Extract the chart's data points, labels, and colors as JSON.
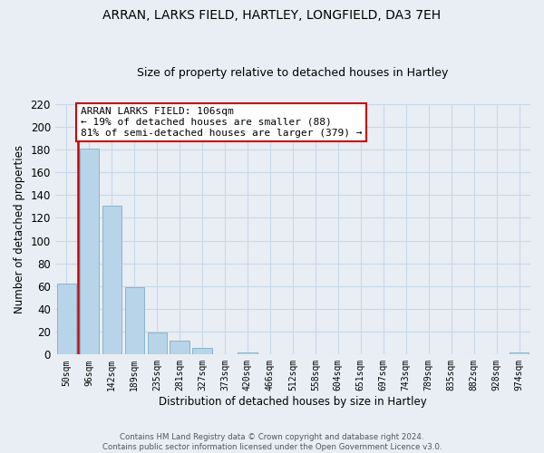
{
  "title": "ARRAN, LARKS FIELD, HARTLEY, LONGFIELD, DA3 7EH",
  "subtitle": "Size of property relative to detached houses in Hartley",
  "xlabel": "Distribution of detached houses by size in Hartley",
  "ylabel": "Number of detached properties",
  "bar_labels": [
    "50sqm",
    "96sqm",
    "142sqm",
    "189sqm",
    "235sqm",
    "281sqm",
    "327sqm",
    "373sqm",
    "420sqm",
    "466sqm",
    "512sqm",
    "558sqm",
    "604sqm",
    "651sqm",
    "697sqm",
    "743sqm",
    "789sqm",
    "835sqm",
    "882sqm",
    "928sqm",
    "974sqm"
  ],
  "bar_values": [
    62,
    181,
    131,
    59,
    19,
    12,
    6,
    0,
    2,
    0,
    0,
    0,
    0,
    0,
    0,
    0,
    0,
    0,
    0,
    0,
    2
  ],
  "bar_color": "#b8d4e8",
  "bar_edge_color": "#8ab4cc",
  "highlight_color": "#cc0000",
  "annotation_title": "ARRAN LARKS FIELD: 106sqm",
  "annotation_line1": "← 19% of detached houses are smaller (88)",
  "annotation_line2": "81% of semi-detached houses are larger (379) →",
  "annotation_box_facecolor": "#ffffff",
  "annotation_box_edgecolor": "#cc0000",
  "ylim": [
    0,
    220
  ],
  "yticks": [
    0,
    20,
    40,
    60,
    80,
    100,
    120,
    140,
    160,
    180,
    200,
    220
  ],
  "footer_line1": "Contains HM Land Registry data © Crown copyright and database right 2024.",
  "footer_line2": "Contains public sector information licensed under the Open Government Licence v3.0.",
  "grid_color": "#c8d8e8",
  "background_color": "#e8eef4"
}
